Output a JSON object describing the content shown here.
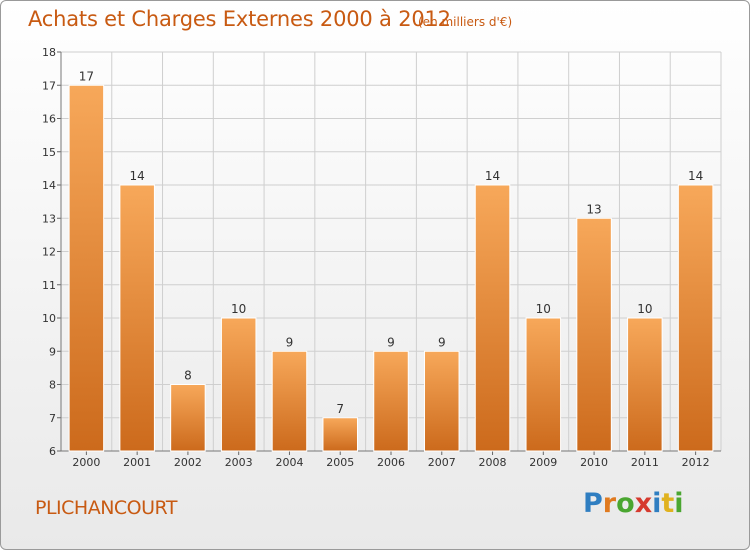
{
  "header": {
    "title": "Achats et Charges Externes 2000 à 2012",
    "subtitle": "(en milliers d'€)"
  },
  "footer": {
    "commune": "PLICHANCOURT",
    "logo_letters": [
      "P",
      "r",
      "o",
      "x",
      "i",
      "t",
      "i"
    ],
    "logo_colors": [
      "#2f7ec1",
      "#e07a1f",
      "#4aa630",
      "#d63a2e",
      "#2f7ec1",
      "#e0b21f",
      "#4aa630"
    ]
  },
  "colors": {
    "bar_light": "#f7a85a",
    "bar_dark": "#cc6a1c",
    "text_accent": "#c85a12",
    "grid": "#cfcfcf"
  },
  "chart_data": {
    "type": "bar",
    "title": "Achats et Charges Externes 2000 à 2012",
    "subtitle": "(en milliers d'€)",
    "xlabel": "",
    "ylabel": "",
    "categories": [
      "2000",
      "2001",
      "2002",
      "2003",
      "2004",
      "2005",
      "2006",
      "2007",
      "2008",
      "2009",
      "2010",
      "2011",
      "2012"
    ],
    "values": [
      17,
      14,
      8,
      10,
      9,
      7,
      9,
      9,
      14,
      10,
      13,
      10,
      14
    ],
    "ylim": [
      6,
      18
    ],
    "yticks": [
      6,
      7,
      8,
      9,
      10,
      11,
      12,
      13,
      14,
      15,
      16,
      17,
      18
    ],
    "grid": true
  }
}
